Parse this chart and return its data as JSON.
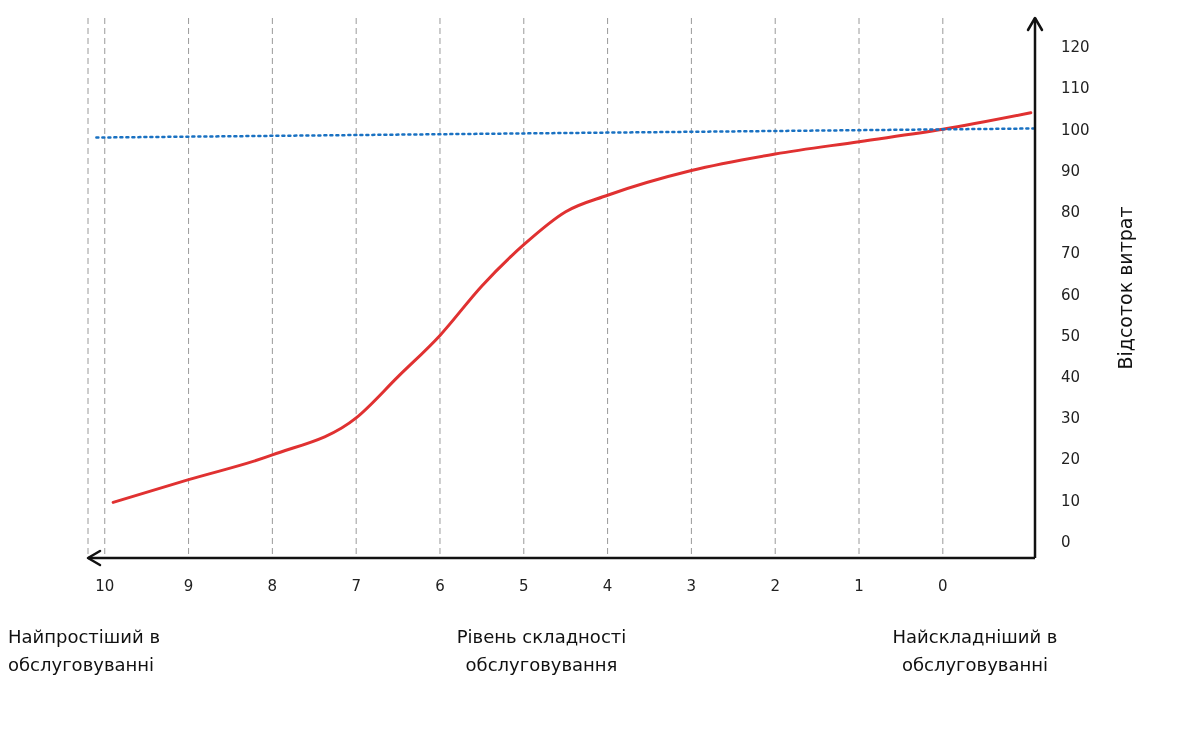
{
  "chart_data": {
    "type": "line",
    "xlabel": "Рівень складності обслуговування",
    "ylabel": "Відсоток витрат",
    "annotations": [
      "Найпростіший в обслуговуванні",
      "Найскладніший в обслуговуванні"
    ],
    "xlim": [
      10.2,
      -1.1
    ],
    "xticks": [
      10,
      9,
      8,
      7,
      6,
      5,
      4,
      3,
      2,
      1,
      0
    ],
    "ylim": [
      -4,
      127
    ],
    "yticks": [
      0,
      10,
      20,
      30,
      40,
      50,
      60,
      70,
      80,
      90,
      100,
      110,
      120
    ],
    "grid": "x",
    "marker": "none",
    "series": [
      {
        "color": "#e03131",
        "line_style": "solid",
        "x": [
          9.9,
          9,
          8,
          7,
          6.5,
          6,
          5.5,
          5,
          4.5,
          4,
          3,
          2,
          1,
          0,
          -1.05
        ],
        "values": [
          9.5,
          15,
          21,
          30,
          40,
          50,
          62,
          72,
          80,
          84,
          90,
          94,
          97,
          100,
          104
        ]
      },
      {
        "color": "#1971c2",
        "line_style": "dotted",
        "x": [
          10.1,
          -1.1
        ],
        "values": [
          98,
          100.2
        ]
      }
    ]
  }
}
